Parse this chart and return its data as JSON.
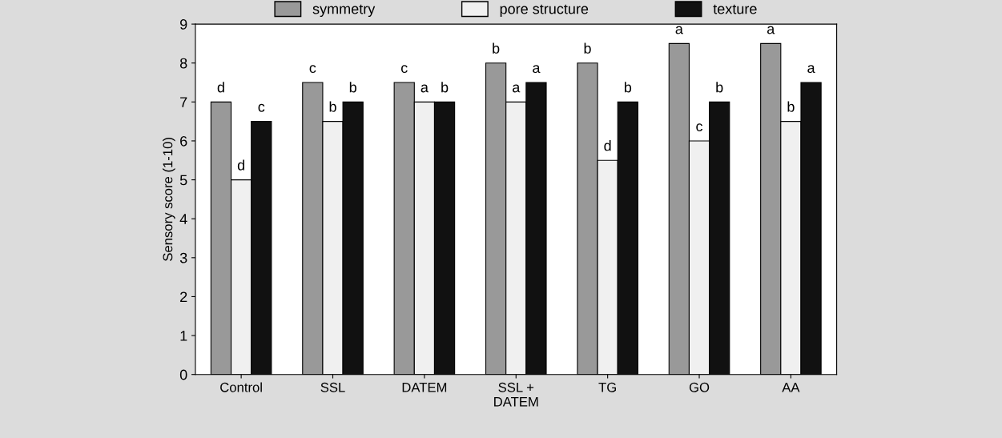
{
  "chart_data": {
    "type": "bar",
    "ylabel": "Sensory score (1-10)",
    "categories": [
      "Control",
      "SSL",
      "DATEM",
      "SSL +\nDATEM",
      "TG",
      "GO",
      "AA"
    ],
    "series": [
      {
        "name": "symmetry",
        "color": "#999999",
        "values": [
          7,
          7.5,
          7.5,
          8,
          8,
          8.5,
          8.5
        ],
        "value_labels": [
          "d",
          "c",
          "c",
          "b",
          "b",
          "a",
          "a"
        ]
      },
      {
        "name": "pore structure",
        "color": "#f0f0f0",
        "values": [
          5,
          6.5,
          7,
          7,
          5.5,
          6,
          6.5
        ],
        "value_labels": [
          "d",
          "b",
          "a",
          "a",
          "d",
          "c",
          "b"
        ]
      },
      {
        "name": "texture",
        "color": "#111111",
        "values": [
          6.5,
          7,
          7,
          7.5,
          7,
          7,
          7.5
        ],
        "value_labels": [
          "c",
          "b",
          "b",
          "a",
          "b",
          "b",
          "a"
        ]
      }
    ],
    "ylim": [
      0,
      9
    ],
    "yticks": [
      0,
      1,
      2,
      3,
      4,
      5,
      6,
      7,
      8,
      9
    ],
    "grid": false,
    "legend": "top"
  }
}
